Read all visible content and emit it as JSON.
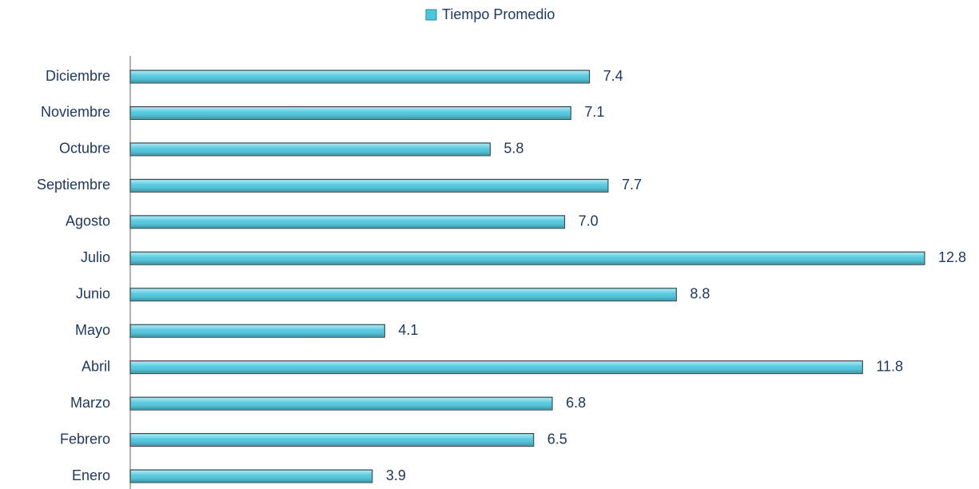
{
  "chart_data": {
    "type": "bar",
    "orientation": "horizontal",
    "categories": [
      "Enero",
      "Febrero",
      "Marzo",
      "Abril",
      "Mayo",
      "Junio",
      "Julio",
      "Agosto",
      "Septiembre",
      "Octubre",
      "Noviembre",
      "Diciembre"
    ],
    "series": [
      {
        "name": "Tiempo Promedio",
        "color": "#4cc6de",
        "values": [
          3.9,
          6.5,
          6.8,
          11.8,
          4.1,
          8.8,
          12.8,
          7.0,
          7.7,
          5.8,
          7.1,
          7.4
        ],
        "value_labels": [
          "3.9",
          "6.5",
          "6.8",
          "11.8",
          "4.1",
          "8.8",
          "12.8",
          "7.0",
          "7.7",
          "5.8",
          "7.1",
          "7.4"
        ]
      }
    ],
    "legend": "top"
  }
}
